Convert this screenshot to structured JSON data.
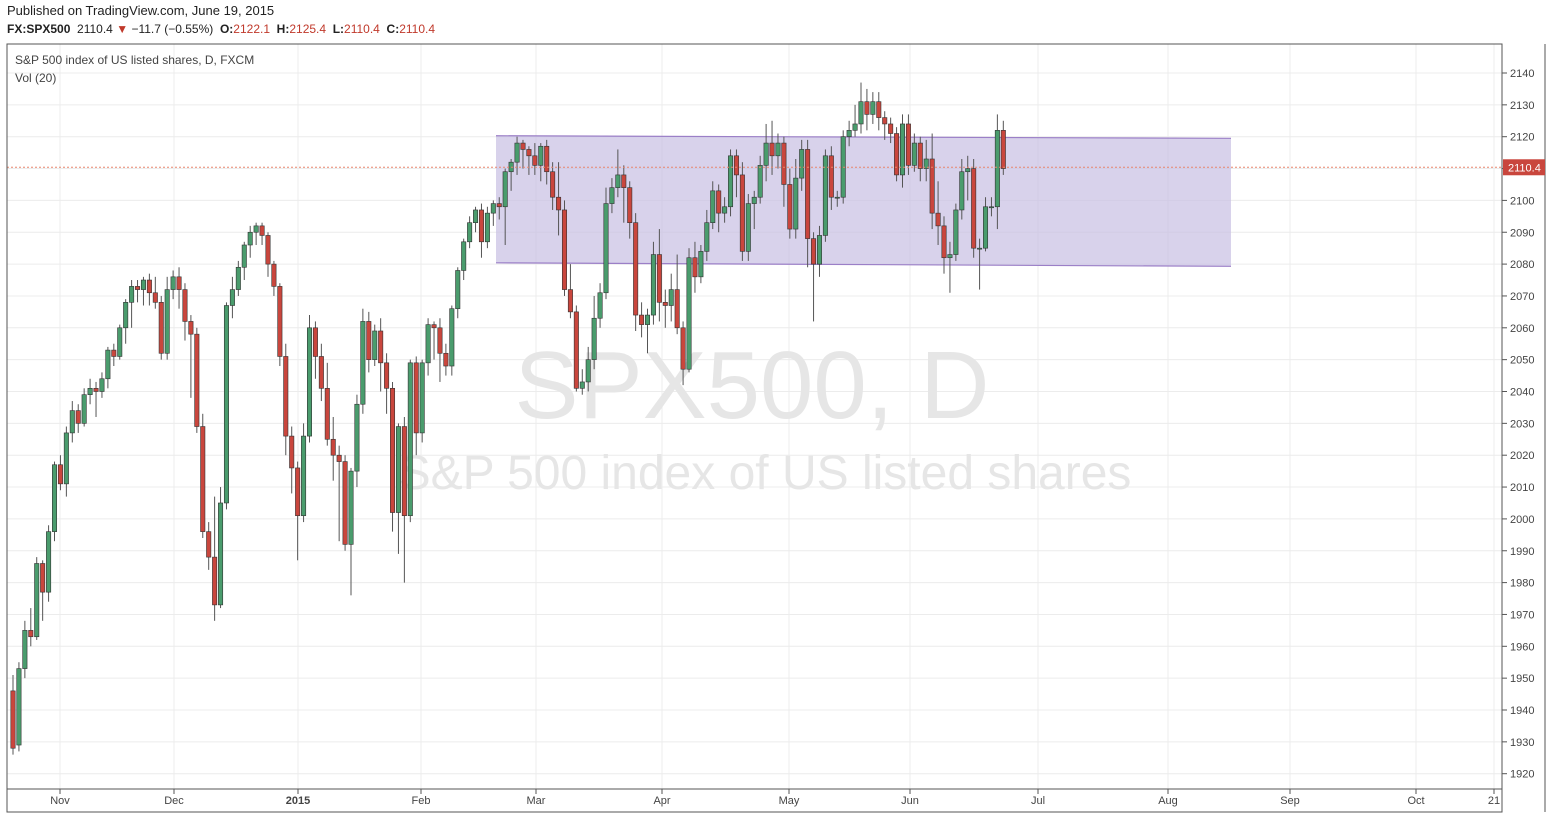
{
  "header": {
    "published": "Published on TradingView.com, June 19, 2015",
    "symbol": "FX:SPX500",
    "last": "2110.4",
    "change_arrow": "▼",
    "change": "−11.7 (−0.55%)",
    "o_label": "O:",
    "o_value": "2122.1",
    "h_label": "H:",
    "h_value": "2125.4",
    "l_label": "L:",
    "l_value": "2110.4",
    "c_label": "C:",
    "c_value": "2110.4"
  },
  "legend": {
    "title": "S&P 500 index of US listed shares, D, FXCM",
    "indicator": "Vol (20)"
  },
  "watermark": {
    "line1": "SPX500, D",
    "line2": "S&P 500 index of US listed shares"
  },
  "price_label": "2110.4",
  "colors": {
    "up": "#4a9c6d",
    "down": "#c9463d",
    "wick": "#555555",
    "channel_fill": "#c8bfe3",
    "channel_line": "#9b7fc7",
    "price_line": "#e8866d",
    "price_label_bg": "#c9463d"
  },
  "chart_data": {
    "type": "candlestick",
    "title": "S&P 500 index of US listed shares, D, FXCM",
    "ylim": [
      1915,
      2145
    ],
    "y_ticks": [
      1920,
      1930,
      1940,
      1950,
      1960,
      1970,
      1980,
      1990,
      2000,
      2010,
      2020,
      2030,
      2040,
      2050,
      2060,
      2070,
      2080,
      2090,
      2100,
      2110,
      2120,
      2130,
      2140
    ],
    "x_ticks": [
      "Nov",
      "Dec",
      "2015",
      "Feb",
      "Mar",
      "Apr",
      "May",
      "Jun",
      "Jul",
      "Aug",
      "Sep",
      "Oct",
      "21"
    ],
    "last_price": 2110.4,
    "channel": {
      "start": "2015-02-20",
      "end": "2015-08-17",
      "top": [
        2120.3,
        2119.5
      ],
      "bottom": [
        2080.4,
        2079.3
      ]
    },
    "candles": [
      [
        1946,
        1928,
        1926,
        1951
      ],
      [
        1929,
        1953,
        1927,
        1955
      ],
      [
        1953,
        1965,
        1950,
        1968
      ],
      [
        1965,
        1963,
        1960,
        1972
      ],
      [
        1963,
        1986,
        1962,
        1988
      ],
      [
        1986,
        1977,
        1968,
        1987
      ],
      [
        1977,
        1996,
        1974,
        1998
      ],
      [
        1996,
        2017,
        1993,
        2018
      ],
      [
        2017,
        2011,
        2009,
        2020
      ],
      [
        2011,
        2027,
        2007,
        2029
      ],
      [
        2027,
        2034,
        2024,
        2037
      ],
      [
        2034,
        2030,
        2027,
        2036
      ],
      [
        2030,
        2039,
        2029,
        2041
      ],
      [
        2039,
        2041,
        2036,
        2044
      ],
      [
        2041,
        2040,
        2032,
        2043
      ],
      [
        2040,
        2044,
        2038,
        2046
      ],
      [
        2044,
        2053,
        2041,
        2054
      ],
      [
        2053,
        2051,
        2048,
        2055
      ],
      [
        2051,
        2060,
        2050,
        2061
      ],
      [
        2060,
        2068,
        2055,
        2069
      ],
      [
        2068,
        2073,
        2060,
        2075
      ],
      [
        2073,
        2072,
        2068,
        2075
      ],
      [
        2072,
        2075,
        2067,
        2076
      ],
      [
        2075,
        2071,
        2067,
        2077
      ],
      [
        2071,
        2068,
        2066,
        2076
      ],
      [
        2068,
        2052,
        2050,
        2070
      ],
      [
        2052,
        2072,
        2050,
        2076
      ],
      [
        2072,
        2076,
        2069,
        2078
      ],
      [
        2076,
        2072,
        2066,
        2079
      ],
      [
        2072,
        2062,
        2056,
        2074
      ],
      [
        2062,
        2058,
        2038,
        2064
      ],
      [
        2058,
        2029,
        2027,
        2060
      ],
      [
        2029,
        1996,
        1994,
        2033
      ],
      [
        1996,
        1988,
        1984,
        1999
      ],
      [
        1988,
        1973,
        1968,
        2007
      ],
      [
        1973,
        2005,
        1972,
        2010
      ],
      [
        2005,
        2067,
        2003,
        2068
      ],
      [
        2067,
        2072,
        2063,
        2076
      ],
      [
        2072,
        2079,
        2070,
        2081
      ],
      [
        2079,
        2086,
        2075,
        2087
      ],
      [
        2086,
        2090,
        2082,
        2092
      ],
      [
        2090,
        2092,
        2086,
        2093
      ],
      [
        2092,
        2089,
        2086,
        2093
      ],
      [
        2089,
        2080,
        2076,
        2090
      ],
      [
        2080,
        2073,
        2070,
        2081
      ],
      [
        2073,
        2051,
        2048,
        2074
      ],
      [
        2051,
        2026,
        2020,
        2055
      ],
      [
        2026,
        2016,
        2008,
        2029
      ],
      [
        2016,
        2001,
        1987,
        2018
      ],
      [
        2001,
        2026,
        1999,
        2030
      ],
      [
        2026,
        2060,
        2024,
        2064
      ],
      [
        2060,
        2051,
        2044,
        2062
      ],
      [
        2051,
        2041,
        2037,
        2055
      ],
      [
        2041,
        2025,
        2023,
        2049
      ],
      [
        2025,
        2020,
        2012,
        2032
      ],
      [
        2020,
        2018,
        1993,
        2023
      ],
      [
        2018,
        1992,
        1990,
        2020
      ],
      [
        1992,
        2015,
        1976,
        2016
      ],
      [
        2015,
        2036,
        2010,
        2039
      ],
      [
        2036,
        2062,
        2033,
        2066
      ],
      [
        2062,
        2050,
        2046,
        2065
      ],
      [
        2050,
        2059,
        2048,
        2061
      ],
      [
        2059,
        2049,
        2040,
        2063
      ],
      [
        2049,
        2041,
        2033,
        2052
      ],
      [
        2041,
        2002,
        1996,
        2043
      ],
      [
        2002,
        2029,
        1989,
        2030
      ],
      [
        2029,
        2001,
        1980,
        2032
      ],
      [
        2001,
        2049,
        1999,
        2050
      ],
      [
        2049,
        2027,
        2020,
        2051
      ],
      [
        2027,
        2049,
        2024,
        2050
      ],
      [
        2049,
        2061,
        2045,
        2063
      ],
      [
        2061,
        2060,
        2050,
        2062
      ],
      [
        2060,
        2052,
        2043,
        2063
      ],
      [
        2052,
        2048,
        2045,
        2055
      ],
      [
        2048,
        2066,
        2045,
        2067
      ],
      [
        2066,
        2078,
        2063,
        2079
      ],
      [
        2078,
        2087,
        2075,
        2088
      ],
      [
        2087,
        2093,
        2085,
        2095
      ],
      [
        2093,
        2097,
        2090,
        2098
      ],
      [
        2097,
        2087,
        2082,
        2099
      ],
      [
        2087,
        2096,
        2085,
        2098
      ],
      [
        2096,
        2099,
        2092,
        2100
      ],
      [
        2099,
        2098,
        2094,
        2101
      ],
      [
        2098,
        2109,
        2086,
        2110
      ],
      [
        2109,
        2112,
        2103,
        2113
      ],
      [
        2112,
        2118,
        2108,
        2120
      ],
      [
        2118,
        2116,
        2110,
        2119
      ],
      [
        2116,
        2114,
        2108,
        2117
      ],
      [
        2114,
        2111,
        2108,
        2118
      ],
      [
        2111,
        2117,
        2106,
        2118
      ],
      [
        2117,
        2109,
        2105,
        2119
      ],
      [
        2109,
        2101,
        2097,
        2112
      ],
      [
        2101,
        2097,
        2089,
        2112
      ],
      [
        2097,
        2072,
        2070,
        2100
      ],
      [
        2072,
        2065,
        2063,
        2080
      ],
      [
        2065,
        2041,
        2040,
        2067
      ],
      [
        2041,
        2043,
        2039,
        2047
      ],
      [
        2043,
        2050,
        2040,
        2054
      ],
      [
        2050,
        2063,
        2047,
        2070
      ],
      [
        2063,
        2071,
        2060,
        2074
      ],
      [
        2071,
        2099,
        2069,
        2104
      ],
      [
        2099,
        2104,
        2096,
        2107
      ],
      [
        2104,
        2108,
        2101,
        2116
      ],
      [
        2108,
        2104,
        2093,
        2111
      ],
      [
        2104,
        2093,
        2088,
        2106
      ],
      [
        2093,
        2064,
        2059,
        2096
      ],
      [
        2064,
        2061,
        2057,
        2068
      ],
      [
        2061,
        2064,
        2052,
        2066
      ],
      [
        2064,
        2083,
        2061,
        2087
      ],
      [
        2083,
        2068,
        2062,
        2091
      ],
      [
        2068,
        2067,
        2060,
        2072
      ],
      [
        2067,
        2072,
        2062,
        2077
      ],
      [
        2072,
        2060,
        2058,
        2083
      ],
      [
        2060,
        2047,
        2042,
        2062
      ],
      [
        2047,
        2082,
        2046,
        2085
      ],
      [
        2082,
        2076,
        2071,
        2087
      ],
      [
        2076,
        2084,
        2074,
        2086
      ],
      [
        2084,
        2093,
        2081,
        2097
      ],
      [
        2093,
        2103,
        2091,
        2106
      ],
      [
        2103,
        2096,
        2090,
        2105
      ],
      [
        2096,
        2098,
        2093,
        2101
      ],
      [
        2098,
        2114,
        2095,
        2116
      ],
      [
        2114,
        2108,
        2101,
        2116
      ],
      [
        2108,
        2084,
        2081,
        2112
      ],
      [
        2084,
        2099,
        2081,
        2102
      ],
      [
        2099,
        2101,
        2091,
        2103
      ],
      [
        2101,
        2111,
        2099,
        2114
      ],
      [
        2111,
        2118,
        2106,
        2124
      ],
      [
        2118,
        2114,
        2108,
        2125
      ],
      [
        2114,
        2118,
        2110,
        2121
      ],
      [
        2118,
        2105,
        2098,
        2120
      ],
      [
        2105,
        2091,
        2088,
        2110
      ],
      [
        2091,
        2107,
        2088,
        2113
      ],
      [
        2107,
        2116,
        2103,
        2119
      ],
      [
        2116,
        2088,
        2079,
        2119
      ],
      [
        2088,
        2080,
        2062,
        2090
      ],
      [
        2080,
        2089,
        2076,
        2092
      ],
      [
        2089,
        2114,
        2087,
        2116
      ],
      [
        2114,
        2101,
        2097,
        2117
      ],
      [
        2101,
        2101,
        2098,
        2103
      ],
      [
        2101,
        2120,
        2099,
        2122
      ],
      [
        2120,
        2122,
        2117,
        2125
      ],
      [
        2122,
        2124,
        2120,
        2130
      ],
      [
        2124,
        2131,
        2121,
        2137
      ],
      [
        2131,
        2127,
        2122,
        2135
      ],
      [
        2127,
        2131,
        2124,
        2134
      ],
      [
        2131,
        2126,
        2122,
        2134
      ],
      [
        2126,
        2124,
        2119,
        2128
      ],
      [
        2124,
        2121,
        2118,
        2126
      ],
      [
        2121,
        2108,
        2106,
        2123
      ],
      [
        2108,
        2124,
        2104,
        2127
      ],
      [
        2124,
        2111,
        2108,
        2127
      ],
      [
        2111,
        2118,
        2109,
        2121
      ],
      [
        2118,
        2110,
        2106,
        2120
      ],
      [
        2110,
        2113,
        2106,
        2119
      ],
      [
        2113,
        2096,
        2091,
        2121
      ],
      [
        2096,
        2092,
        2086,
        2106
      ],
      [
        2092,
        2082,
        2077,
        2095
      ],
      [
        2082,
        2083,
        2071,
        2087
      ],
      [
        2083,
        2097,
        2081,
        2099
      ],
      [
        2097,
        2109,
        2094,
        2113
      ],
      [
        2109,
        2110,
        2100,
        2114
      ],
      [
        2110,
        2085,
        2082,
        2113
      ],
      [
        2085,
        2085,
        2072,
        2088
      ],
      [
        2085,
        2098,
        2084,
        2101
      ],
      [
        2098,
        2098,
        2095,
        2101
      ],
      [
        2098,
        2122,
        2091,
        2127
      ],
      [
        2122,
        2110,
        2108,
        2125
      ]
    ]
  }
}
